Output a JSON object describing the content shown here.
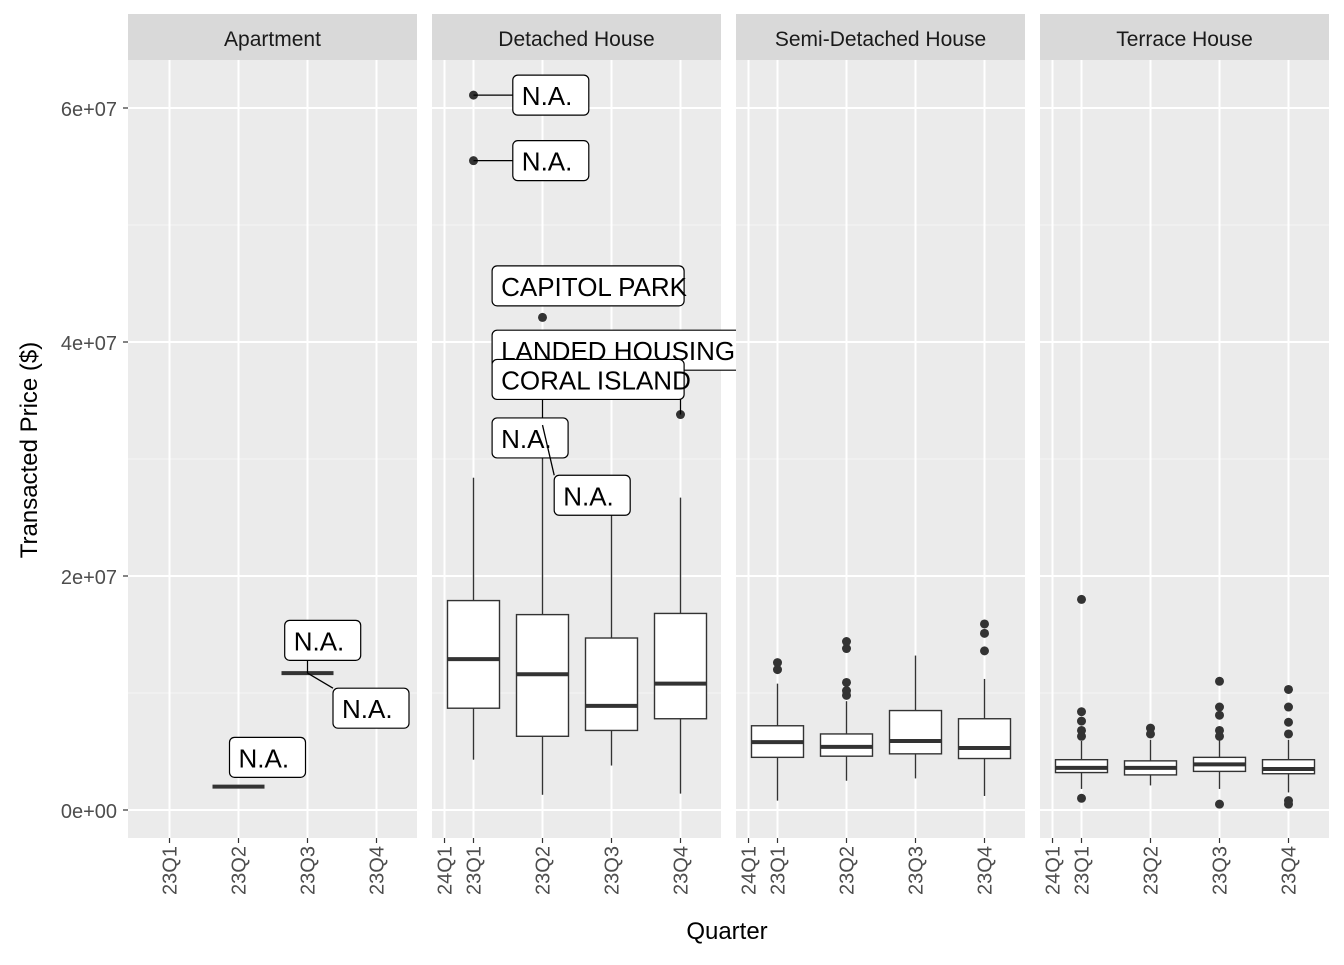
{
  "chart_data": {
    "type": "boxplot",
    "xlabel": "Quarter",
    "ylabel": "Transacted Price ($)",
    "ylim": [
      -6000000,
      64000000
    ],
    "y_ticks": [
      {
        "value": 0,
        "label": "0e+00"
      },
      {
        "value": 20000000,
        "label": "2e+07"
      },
      {
        "value": 40000000,
        "label": "4e+07"
      },
      {
        "value": 60000000,
        "label": "6e+07"
      }
    ],
    "y_minor_ticks": [
      10000000,
      30000000,
      50000000
    ],
    "colors": {
      "panel": "#ebebeb",
      "strip": "#d9d9d9",
      "grid": "#ffffff",
      "ink": "#333333",
      "tick_text": "#4d4d4d"
    },
    "facets": [
      {
        "name": "Apartment",
        "categories": [
          "23Q1",
          "23Q2",
          "23Q3",
          "23Q4"
        ],
        "boxes": [
          {
            "category": "23Q2",
            "q1": 2000000,
            "median": 2000000,
            "q3": 2000000,
            "whisker_low": 2000000,
            "whisker_high": 2000000
          },
          {
            "category": "23Q3",
            "q1": 11700000,
            "median": 11700000,
            "q3": 11700000,
            "whisker_low": 11700000,
            "whisker_high": 11700000
          }
        ],
        "outliers": [],
        "labels": [
          {
            "text": "N.A.",
            "category": "23Q2",
            "y": 2000000,
            "label_category": "23Q2",
            "label_y": 4500000
          },
          {
            "text": "N.A.",
            "category": "23Q3",
            "y": 11700000,
            "label_category": "23Q2.8",
            "label_y": 14500000
          },
          {
            "text": "N.A.",
            "category": "23Q3",
            "y": 11700000,
            "label_category": "23Q3.5",
            "label_y": 8700000
          }
        ]
      },
      {
        "name": "Detached House",
        "categories": [
          "24Q1",
          "23Q1",
          "23Q2",
          "23Q3",
          "23Q4"
        ],
        "boxes": [
          {
            "category": "23Q1",
            "q1": 8700000,
            "median": 12900000,
            "q3": 17900000,
            "whisker_low": 4300000,
            "whisker_high": 28400000
          },
          {
            "category": "23Q2",
            "q1": 6300000,
            "median": 11600000,
            "q3": 16700000,
            "whisker_low": 1300000,
            "whisker_high": 32800000
          },
          {
            "category": "23Q3",
            "q1": 6800000,
            "median": 8900000,
            "q3": 14700000,
            "whisker_low": 3800000,
            "whisker_high": 25300000
          },
          {
            "category": "23Q4",
            "q1": 7800000,
            "median": 10800000,
            "q3": 16800000,
            "whisker_low": 1400000,
            "whisker_high": 26700000
          }
        ],
        "outliers": [
          {
            "category": "23Q1",
            "y": 61100000
          },
          {
            "category": "23Q1",
            "y": 55500000
          },
          {
            "category": "23Q2",
            "y": 42100000
          },
          {
            "category": "23Q2",
            "y": 32900000
          },
          {
            "category": "23Q4",
            "y": 33800000
          }
        ],
        "labels": [
          {
            "text": "N.A.",
            "category": "23Q1",
            "y": 61100000,
            "label_category": "23Q1.7",
            "label_y": 61100000
          },
          {
            "text": "N.A.",
            "category": "23Q1",
            "y": 55500000,
            "label_category": "23Q1.7",
            "label_y": 55500000
          },
          {
            "text": "CAPITOL PARK",
            "category": "23Q2",
            "y": 42100000,
            "label_category": "24Q1.82",
            "label_y": 44800000
          },
          {
            "text": "LANDED HOUSING DEVELOPMENT",
            "category": "23Q4",
            "y": 33800000,
            "label_category": "24Q1.82",
            "label_y": 39300000
          },
          {
            "text": "CORAL ISLAND",
            "category": "23Q2",
            "y": 32900000,
            "label_category": "24Q1.82",
            "label_y": 36800000
          },
          {
            "text": "N.A.",
            "category": "23Q2",
            "y": 32900000,
            "label_category": "24Q1.82",
            "label_y": 31800000
          },
          {
            "text": "N.A.",
            "category": "23Q2",
            "y": 32900000,
            "label_category": "23Q2.3",
            "label_y": 26900000
          }
        ]
      },
      {
        "name": "Semi-Detached House",
        "categories": [
          "24Q1",
          "23Q1",
          "23Q2",
          "23Q3",
          "23Q4"
        ],
        "boxes": [
          {
            "category": "23Q1",
            "q1": 4500000,
            "median": 5800000,
            "q3": 7200000,
            "whisker_low": 800000,
            "whisker_high": 10800000
          },
          {
            "category": "23Q2",
            "q1": 4600000,
            "median": 5400000,
            "q3": 6500000,
            "whisker_low": 2500000,
            "whisker_high": 9300000
          },
          {
            "category": "23Q3",
            "q1": 4800000,
            "median": 5900000,
            "q3": 8500000,
            "whisker_low": 2700000,
            "whisker_high": 13200000
          },
          {
            "category": "23Q4",
            "q1": 4400000,
            "median": 5300000,
            "q3": 7800000,
            "whisker_low": 1200000,
            "whisker_high": 11200000
          }
        ],
        "outliers": [
          {
            "category": "23Q1",
            "y": 12000000
          },
          {
            "category": "23Q1",
            "y": 12600000
          },
          {
            "category": "23Q2",
            "y": 9800000
          },
          {
            "category": "23Q2",
            "y": 10200000
          },
          {
            "category": "23Q2",
            "y": 10900000
          },
          {
            "category": "23Q2",
            "y": 13800000
          },
          {
            "category": "23Q2",
            "y": 14400000
          },
          {
            "category": "23Q4",
            "y": 13600000
          },
          {
            "category": "23Q4",
            "y": 15100000
          },
          {
            "category": "23Q4",
            "y": 15900000
          }
        ],
        "labels": []
      },
      {
        "name": "Terrace House",
        "categories": [
          "24Q1",
          "23Q1",
          "23Q2",
          "23Q3",
          "23Q4"
        ],
        "boxes": [
          {
            "category": "23Q1",
            "q1": 3200000,
            "median": 3600000,
            "q3": 4300000,
            "whisker_low": 1800000,
            "whisker_high": 5900000
          },
          {
            "category": "23Q2",
            "q1": 3000000,
            "median": 3600000,
            "q3": 4200000,
            "whisker_low": 2100000,
            "whisker_high": 6000000
          },
          {
            "category": "23Q3",
            "q1": 3300000,
            "median": 3900000,
            "q3": 4500000,
            "whisker_low": 1800000,
            "whisker_high": 6200000
          },
          {
            "category": "23Q4",
            "q1": 3100000,
            "median": 3500000,
            "q3": 4300000,
            "whisker_low": 1500000,
            "whisker_high": 6000000
          }
        ],
        "outliers": [
          {
            "category": "23Q1",
            "y": 18000000
          },
          {
            "category": "23Q1",
            "y": 8400000
          },
          {
            "category": "23Q1",
            "y": 7600000
          },
          {
            "category": "23Q1",
            "y": 6800000
          },
          {
            "category": "23Q1",
            "y": 6300000
          },
          {
            "category": "23Q1",
            "y": 1000000
          },
          {
            "category": "23Q2",
            "y": 7000000
          },
          {
            "category": "23Q2",
            "y": 6500000
          },
          {
            "category": "23Q3",
            "y": 11000000
          },
          {
            "category": "23Q3",
            "y": 8800000
          },
          {
            "category": "23Q3",
            "y": 8100000
          },
          {
            "category": "23Q3",
            "y": 6800000
          },
          {
            "category": "23Q3",
            "y": 6300000
          },
          {
            "category": "23Q3",
            "y": 500000
          },
          {
            "category": "23Q4",
            "y": 10300000
          },
          {
            "category": "23Q4",
            "y": 8800000
          },
          {
            "category": "23Q4",
            "y": 7500000
          },
          {
            "category": "23Q4",
            "y": 6500000
          },
          {
            "category": "23Q4",
            "y": 800000
          },
          {
            "category": "23Q4",
            "y": 500000
          }
        ],
        "labels": []
      }
    ]
  }
}
